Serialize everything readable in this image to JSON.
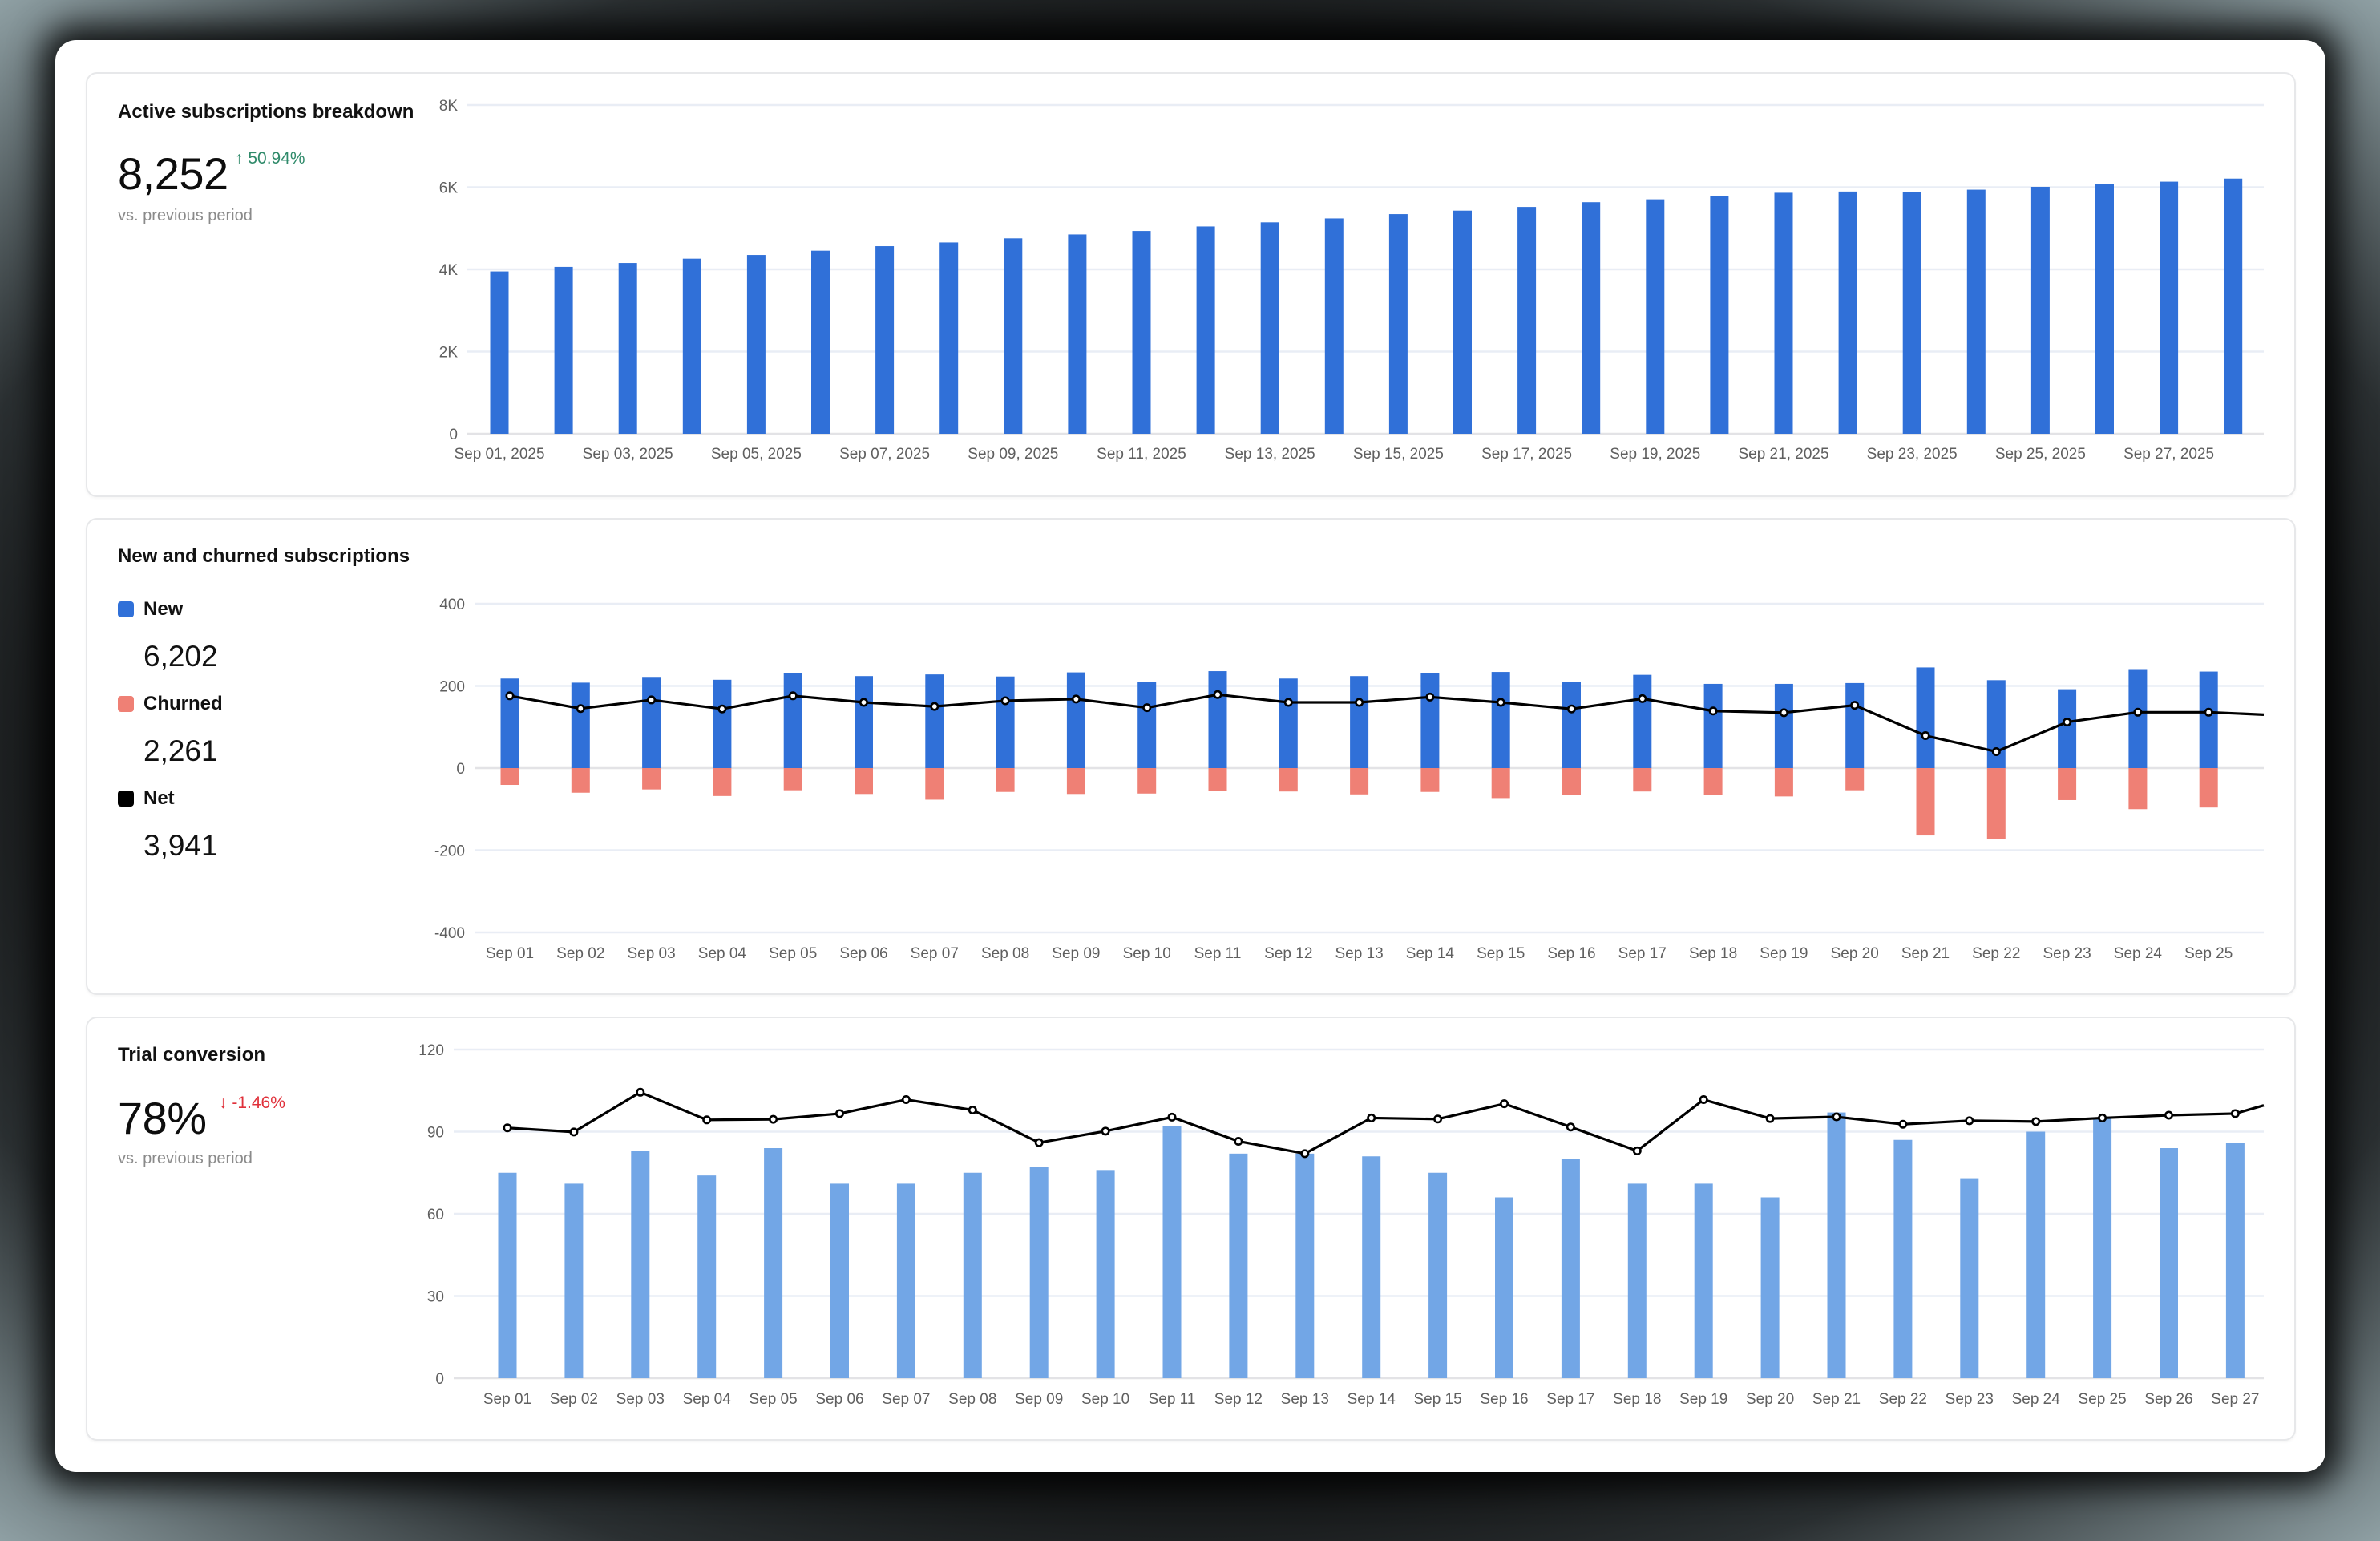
{
  "colors": {
    "bar_primary": "#3070d8",
    "bar_light": "#72a6e6",
    "churn": "#ef8075",
    "net": "#000000",
    "positive": "#2f8a6a",
    "negative": "#e0303a",
    "grid": "#e9edf5",
    "axis_text": "#5f5f5f"
  },
  "cards": {
    "active": {
      "title": "Active subscriptions breakdown",
      "kpi_value": "8,252",
      "delta_arrow": "↑",
      "delta_text": "50.94%",
      "delta_direction": "up",
      "subtitle": "vs. previous period"
    },
    "new_churned": {
      "title": "New and churned subscriptions",
      "legend": [
        {
          "label": "New",
          "value": "6,202",
          "color_key": "bar_primary"
        },
        {
          "label": "Churned",
          "value": "2,261",
          "color_key": "churn"
        },
        {
          "label": "Net",
          "value": "3,941",
          "color_key": "net"
        }
      ]
    },
    "trial": {
      "title": "Trial conversion",
      "kpi_value": "78%",
      "delta_arrow": "↓",
      "delta_text": "-1.46%",
      "delta_direction": "down",
      "subtitle": "vs. previous period"
    }
  },
  "chart_data": [
    {
      "id": "active_subscriptions",
      "type": "bar",
      "title": "Active subscriptions breakdown",
      "xlabel": "",
      "ylabel": "",
      "ylim": [
        0,
        8000
      ],
      "y_ticks": [
        0,
        2000,
        4000,
        6000,
        8000
      ],
      "y_tick_labels": [
        "0",
        "2K",
        "4K",
        "6K",
        "8K"
      ],
      "grid": true,
      "categories": [
        "Sep 01, 2025",
        "Sep 02, 2025",
        "Sep 03, 2025",
        "Sep 04, 2025",
        "Sep 05, 2025",
        "Sep 06, 2025",
        "Sep 07, 2025",
        "Sep 08, 2025",
        "Sep 09, 2025",
        "Sep 10, 2025",
        "Sep 11, 2025",
        "Sep 12, 2025",
        "Sep 13, 2025",
        "Sep 14, 2025",
        "Sep 15, 2025",
        "Sep 16, 2025",
        "Sep 17, 2025",
        "Sep 18, 2025",
        "Sep 19, 2025",
        "Sep 20, 2025",
        "Sep 21, 2025",
        "Sep 22, 2025",
        "Sep 23, 2025",
        "Sep 24, 2025",
        "Sep 25, 2025",
        "Sep 26, 2025",
        "Sep 27, 2025",
        "Sep 28, 2025"
      ],
      "x_tick_labels_shown": [
        "Sep 01, 2025",
        "Sep 03, 2025",
        "Sep 05, 2025",
        "Sep 07, 2025",
        "Sep 09, 2025",
        "Sep 11, 2025",
        "Sep 13, 2025",
        "Sep 15, 2025",
        "Sep 17, 2025",
        "Sep 19, 2025",
        "Sep 21, 2025",
        "Sep 23, 2025",
        "Sep 25, 2025",
        "Sep 27, 2025"
      ],
      "series": [
        {
          "name": "Active subscriptions",
          "color": "#3070d8",
          "values": [
            3950,
            4060,
            4155,
            4260,
            4350,
            4455,
            4565,
            4655,
            4755,
            4850,
            4935,
            5045,
            5145,
            5240,
            5345,
            5430,
            5520,
            5635,
            5705,
            5790,
            5865,
            5895,
            5875,
            5940,
            6010,
            6070,
            6135,
            6210
          ]
        }
      ]
    },
    {
      "id": "new_and_churned",
      "type": "bar",
      "title": "New and churned subscriptions",
      "xlabel": "",
      "ylabel": "",
      "ylim": [
        -400,
        400
      ],
      "y_ticks": [
        -400,
        -200,
        0,
        200,
        400
      ],
      "y_tick_labels": [
        "-400",
        "-200",
        "0",
        "200",
        "400"
      ],
      "grid": true,
      "legend_position": "left",
      "categories": [
        "Sep 01",
        "Sep 02",
        "Sep 03",
        "Sep 04",
        "Sep 05",
        "Sep 06",
        "Sep 07",
        "Sep 08",
        "Sep 09",
        "Sep 10",
        "Sep 11",
        "Sep 12",
        "Sep 13",
        "Sep 14",
        "Sep 15",
        "Sep 16",
        "Sep 17",
        "Sep 18",
        "Sep 19",
        "Sep 20",
        "Sep 21",
        "Sep 22",
        "Sep 23",
        "Sep 24",
        "Sep 25"
      ],
      "series": [
        {
          "name": "New",
          "type": "bar",
          "color": "#3070d8",
          "values": [
            218,
            208,
            220,
            215,
            231,
            224,
            228,
            223,
            233,
            210,
            236,
            218,
            224,
            232,
            234,
            210,
            227,
            205,
            205,
            207,
            245,
            214,
            192,
            239,
            235
          ]
        },
        {
          "name": "Churned",
          "type": "bar",
          "color": "#ef8075",
          "values": [
            -41,
            -60,
            -52,
            -68,
            -54,
            -63,
            -77,
            -58,
            -63,
            -62,
            -55,
            -57,
            -64,
            -58,
            -73,
            -66,
            -57,
            -65,
            -69,
            -54,
            -164,
            -172,
            -78,
            -100,
            -96
          ]
        },
        {
          "name": "Net",
          "type": "line",
          "color": "#000000",
          "values": [
            176,
            145,
            166,
            144,
            176,
            160,
            150,
            164,
            168,
            147,
            179,
            160,
            160,
            173,
            160,
            144,
            169,
            139,
            135,
            153,
            79,
            40,
            112,
            136,
            136
          ],
          "line_continues_to_edge_value": 130
        }
      ]
    },
    {
      "id": "trial_conversion",
      "type": "bar",
      "title": "Trial conversion",
      "xlabel": "",
      "ylabel": "",
      "ylim": [
        0,
        120
      ],
      "y_ticks": [
        0,
        30,
        60,
        90,
        120
      ],
      "y_tick_labels": [
        "0",
        "30",
        "60",
        "90",
        "120"
      ],
      "grid": true,
      "categories": [
        "Sep 01",
        "Sep 02",
        "Sep 03",
        "Sep 04",
        "Sep 05",
        "Sep 06",
        "Sep 07",
        "Sep 08",
        "Sep 09",
        "Sep 10",
        "Sep 11",
        "Sep 12",
        "Sep 13",
        "Sep 14",
        "Sep 15",
        "Sep 16",
        "Sep 17",
        "Sep 18",
        "Sep 19",
        "Sep 20",
        "Sep 21",
        "Sep 22",
        "Sep 23",
        "Sep 24",
        "Sep 25",
        "Sep 26",
        "Sep 27"
      ],
      "series": [
        {
          "name": "Conversions",
          "type": "bar",
          "color": "#72a6e6",
          "values": [
            75,
            71,
            83,
            74,
            84,
            71,
            71,
            75,
            77,
            76,
            92,
            82,
            82,
            81,
            75,
            66,
            80,
            71,
            71,
            66,
            97,
            87,
            73,
            90,
            95,
            84,
            86
          ]
        },
        {
          "name": "Trials",
          "type": "line",
          "color": "#000000",
          "values": [
            91.4,
            89.9,
            104.4,
            94.3,
            94.5,
            96.6,
            101.7,
            97.9,
            86.0,
            90.2,
            95.3,
            86.5,
            82.0,
            95.0,
            94.6,
            100.2,
            91.7,
            83.0,
            101.7,
            94.8,
            95.4,
            92.7,
            94.0,
            93.7,
            95.0,
            96.0,
            96.6
          ],
          "line_continues_to_edge_value": 99.6
        }
      ]
    }
  ]
}
